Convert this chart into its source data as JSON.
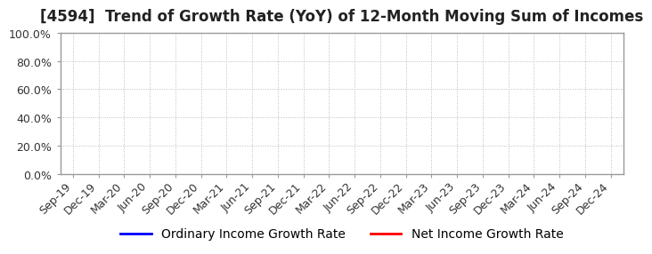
{
  "title": "[4594]  Trend of Growth Rate (YoY) of 12-Month Moving Sum of Incomes",
  "title_fontsize": 12,
  "title_color": "#222222",
  "background_color": "#ffffff",
  "plot_background_color": "#ffffff",
  "grid_color": "#bbbbbb",
  "ylim": [
    0.0,
    1.0
  ],
  "yticks": [
    0.0,
    0.2,
    0.4,
    0.6,
    0.8,
    1.0
  ],
  "ytick_labels": [
    "0.0%",
    "20.0%",
    "40.0%",
    "60.0%",
    "80.0%",
    "100.0%"
  ],
  "xtick_labels": [
    "Sep-19",
    "Dec-19",
    "Mar-20",
    "Jun-20",
    "Sep-20",
    "Dec-20",
    "Mar-21",
    "Jun-21",
    "Sep-21",
    "Dec-21",
    "Mar-22",
    "Jun-22",
    "Sep-22",
    "Dec-22",
    "Mar-23",
    "Jun-23",
    "Sep-23",
    "Dec-23",
    "Mar-24",
    "Jun-24",
    "Sep-24",
    "Dec-24"
  ],
  "line1_color": "#0000ff",
  "line1_label": "Ordinary Income Growth Rate",
  "line2_color": "#ff0000",
  "line2_label": "Net Income Growth Rate",
  "legend_fontsize": 10,
  "tick_fontsize": 9,
  "tick_color": "#333333",
  "border_color": "#999999",
  "spine_linewidth": 1.0,
  "grid_linewidth": 0.7
}
